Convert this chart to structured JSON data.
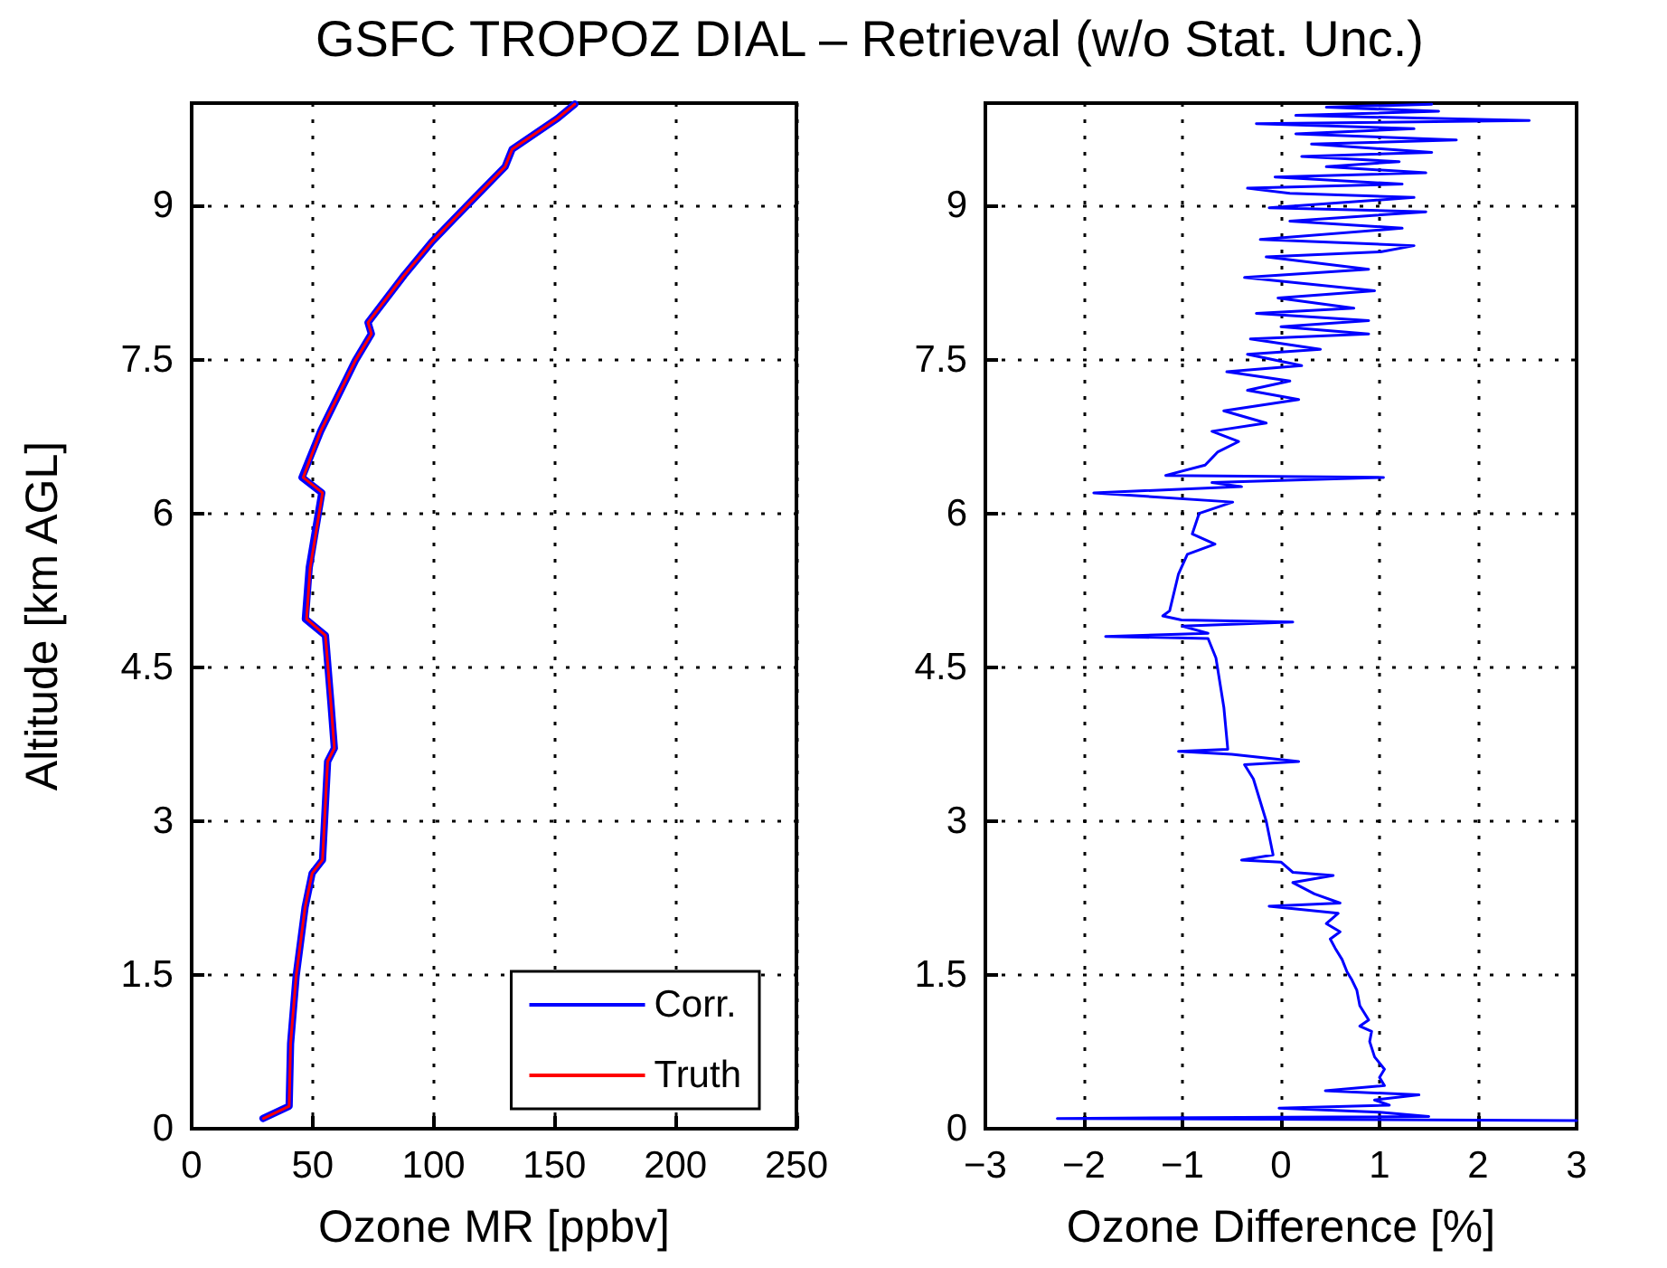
{
  "chart_data": [
    {
      "type": "line",
      "title": "GSFC TROPOZ DIAL – Retrieval (w/o Stat. Unc.)",
      "xlabel": "Ozone MR [ppbv]",
      "ylabel": "Altitude [km AGL]",
      "xlim": [
        0,
        250
      ],
      "xticks": [
        0,
        50,
        100,
        150,
        200,
        250
      ],
      "ylim": [
        0,
        10
      ],
      "yticks": [
        0,
        1.5,
        3,
        4.5,
        6,
        7.5,
        9
      ],
      "grid": true,
      "legend": "bottom right",
      "line_style": "solid",
      "marker": "none",
      "series": [
        {
          "name": "Corr.",
          "color": "#0000ff",
          "x": [
            29.5,
            40.3,
            40.9,
            43.2,
            46.9,
            49.8,
            54.1,
            56.2,
            59.0,
            57.6,
            55.3,
            47.0,
            48.6,
            53.8,
            45.6,
            53.3,
            67.7,
            74.3,
            72.9,
            87.8,
            99.4,
            113.8,
            129.6,
            132.5,
            151.2,
            158.4
          ],
          "values": [
            0.1,
            0.22,
            0.83,
            1.49,
            2.16,
            2.49,
            2.62,
            3.58,
            3.71,
            4.14,
            4.81,
            4.97,
            5.47,
            6.2,
            6.35,
            6.8,
            7.49,
            7.75,
            7.86,
            8.32,
            8.65,
            9.0,
            9.38,
            9.55,
            9.85,
            9.99
          ]
        },
        {
          "name": "Truth",
          "color": "#ff0000",
          "x": [
            29.7,
            40.3,
            40.9,
            43.2,
            46.9,
            49.8,
            54.1,
            56.2,
            59.0,
            57.6,
            55.3,
            47.5,
            49.0,
            54.1,
            46.1,
            53.3,
            67.7,
            74.3,
            72.9,
            87.8,
            99.4,
            113.8,
            129.6,
            132.5,
            151.2,
            158.4
          ],
          "values": [
            0.1,
            0.22,
            0.83,
            1.49,
            2.16,
            2.49,
            2.62,
            3.58,
            3.71,
            4.14,
            4.81,
            4.97,
            5.47,
            6.2,
            6.35,
            6.8,
            7.49,
            7.75,
            7.86,
            8.32,
            8.65,
            9.0,
            9.38,
            9.55,
            9.85,
            9.99
          ]
        }
      ]
    },
    {
      "type": "line",
      "xlabel": "Ozone Difference [%]",
      "xlim": [
        -3,
        3
      ],
      "xticks": [
        -3,
        -2,
        -1,
        0,
        1,
        2,
        3
      ],
      "ylim": [
        0,
        10
      ],
      "yticks": [
        0,
        1.5,
        3,
        4.5,
        6,
        7.5,
        9
      ],
      "grid": true,
      "line_style": "solid",
      "marker": "none",
      "series": [
        {
          "color": "#0000ff",
          "x": [
            3.0,
            -2.27,
            1.5,
            1.0,
            -0.02,
            1.1,
            0.95,
            1.4,
            0.45,
            1.05,
            1.0,
            1.05,
            0.95,
            0.9,
            0.92,
            0.8,
            0.89,
            0.8,
            0.77,
            0.72,
            0.67,
            0.62,
            0.55,
            0.5,
            0.6,
            0.46,
            0.58,
            -0.12,
            0.6,
            0.34,
            0.12,
            0.53,
            0.12,
            0.0,
            -0.4,
            -0.08,
            -0.15,
            -0.28,
            -0.37,
            0.18,
            -0.5,
            -1.04,
            -0.54,
            -0.58,
            -0.66,
            -0.74,
            -1.78,
            -0.74,
            -1.0,
            0.12,
            -1.01,
            -1.2,
            -1.13,
            -1.04,
            -0.95,
            -0.67,
            -0.9,
            -0.83,
            -0.49,
            -1.9,
            -0.4,
            -0.7,
            1.04,
            -1.17,
            -0.77,
            -0.64,
            -0.43,
            -0.7,
            -0.15,
            -0.58,
            0.18,
            -0.34,
            0.09,
            -0.55,
            0.21,
            -0.34,
            0.4,
            -0.31,
            0.89,
            0.0,
            0.89,
            -0.25,
            0.74,
            -0.03,
            0.95,
            -0.37,
            0.89,
            -0.15,
            1.01,
            1.35,
            -0.21,
            1.23,
            0.09,
            1.47,
            -0.12,
            1.35,
            0.09,
            -0.34,
            1.23,
            -0.06,
            1.47,
            0.46,
            1.2,
            0.21,
            1.53,
            0.31,
            1.78,
            0.15,
            1.35,
            -0.25,
            2.52,
            0.15,
            1.6,
            0.46,
            1.53
          ],
          "values": [
            0.08,
            0.1,
            0.12,
            0.16,
            0.2,
            0.23,
            0.28,
            0.33,
            0.37,
            0.42,
            0.5,
            0.58,
            0.7,
            0.85,
            0.95,
            1.0,
            1.06,
            1.2,
            1.35,
            1.45,
            1.53,
            1.65,
            1.76,
            1.85,
            1.92,
            2.0,
            2.1,
            2.17,
            2.2,
            2.29,
            2.4,
            2.47,
            2.5,
            2.6,
            2.62,
            2.67,
            3.0,
            3.41,
            3.55,
            3.58,
            3.65,
            3.68,
            3.7,
            4.11,
            4.59,
            4.78,
            4.8,
            4.83,
            4.9,
            4.94,
            4.96,
            5.0,
            5.05,
            5.41,
            5.6,
            5.7,
            5.8,
            6.0,
            6.11,
            6.2,
            6.26,
            6.3,
            6.35,
            6.37,
            6.47,
            6.6,
            6.7,
            6.8,
            6.88,
            7.0,
            7.11,
            7.2,
            7.29,
            7.38,
            7.44,
            7.55,
            7.6,
            7.7,
            7.75,
            7.82,
            7.88,
            7.95,
            8.0,
            8.1,
            8.17,
            8.3,
            8.38,
            8.5,
            8.55,
            8.61,
            8.67,
            8.78,
            8.85,
            8.94,
            8.98,
            9.08,
            9.12,
            9.17,
            9.21,
            9.28,
            9.32,
            9.38,
            9.43,
            9.48,
            9.52,
            9.6,
            9.64,
            9.7,
            9.75,
            9.8,
            9.83,
            9.88,
            9.92,
            9.96,
            9.99
          ]
        }
      ]
    }
  ]
}
